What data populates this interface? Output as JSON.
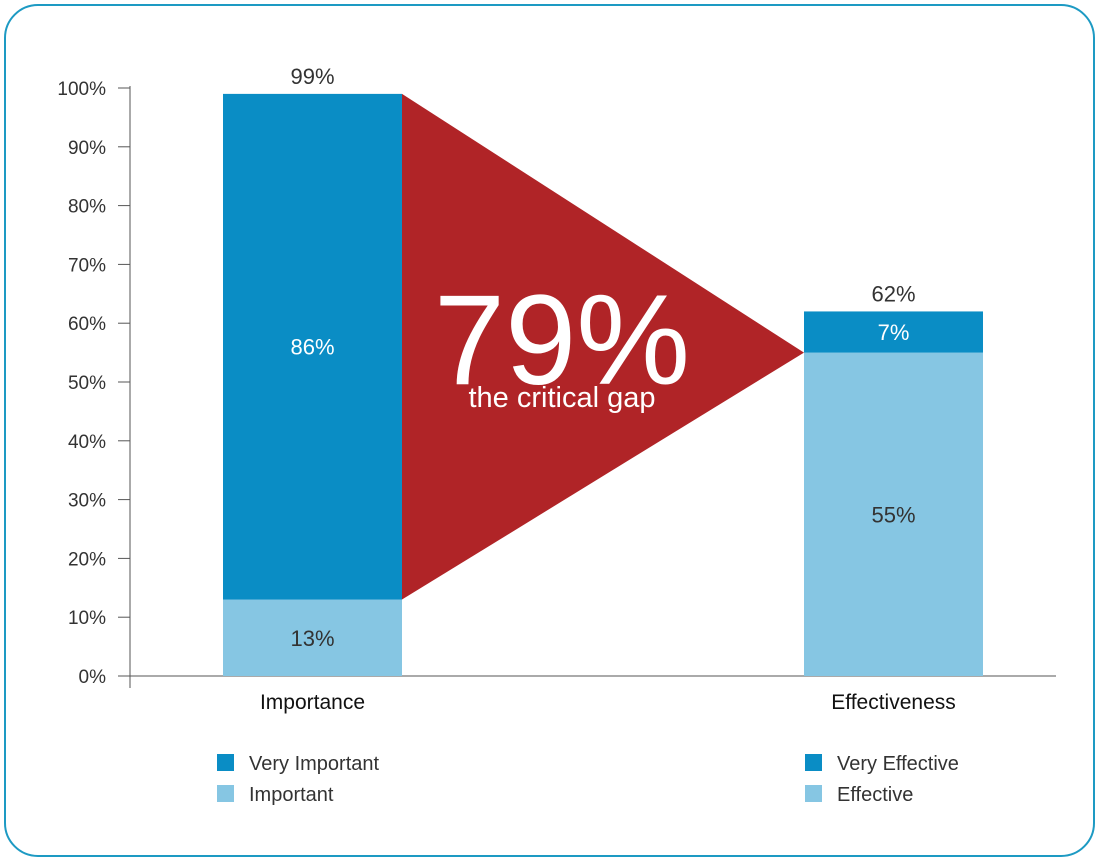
{
  "chart_data": {
    "type": "bar",
    "stacked": true,
    "categories": [
      "Importance",
      "Effectiveness"
    ],
    "series": [
      {
        "name": "Very Important",
        "values": [
          86,
          null
        ],
        "color": "#0a8dc5"
      },
      {
        "name": "Important",
        "values": [
          13,
          null
        ],
        "color": "#86c6e3"
      },
      {
        "name": "Very Effective",
        "values": [
          null,
          7
        ],
        "color": "#0a8dc5"
      },
      {
        "name": "Effective",
        "values": [
          null,
          55
        ],
        "color": "#86c6e3"
      }
    ],
    "totals": [
      99,
      62
    ],
    "total_labels": [
      "99%",
      "62%"
    ],
    "segment_labels": {
      "Importance": {
        "upper": "86%",
        "lower": "13%"
      },
      "Effectiveness": {
        "upper": "7%",
        "lower": "55%"
      }
    },
    "gap": {
      "value": "79%",
      "caption": "the critical gap",
      "color": "#b02427"
    },
    "ylim": [
      0,
      100
    ],
    "yticks": [
      "0%",
      "10%",
      "20%",
      "30%",
      "40%",
      "50%",
      "60%",
      "70%",
      "80%",
      "90%",
      "100%"
    ],
    "ylabel": "",
    "xlabel": "",
    "grid": false,
    "legend": {
      "placement": "bottom",
      "groups": [
        [
          {
            "label": "Very Important",
            "color": "#0a8dc5"
          },
          {
            "label": "Important",
            "color": "#86c6e3"
          }
        ],
        [
          {
            "label": "Very Effective",
            "color": "#0a8dc5"
          },
          {
            "label": "Effective",
            "color": "#86c6e3"
          }
        ]
      ]
    },
    "frame_color": "#1d9ac3",
    "text_color": "#333333"
  }
}
